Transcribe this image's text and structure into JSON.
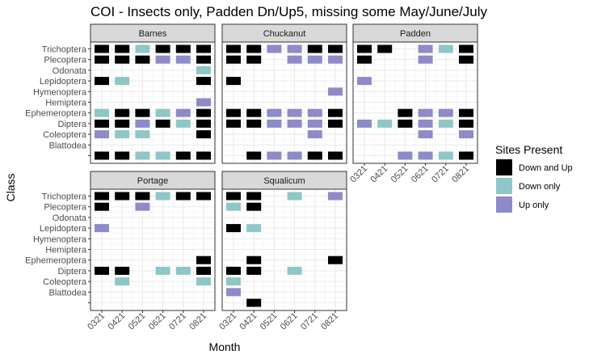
{
  "chart_data": {
    "type": "heatmap",
    "title": "COI - Insects only, Padden Dn/Up5, missing some May/June/July",
    "xlabel": "Month",
    "ylabel": "Class",
    "x_categories": [
      "0321",
      "0421",
      "0521",
      "0621",
      "0721",
      "0821"
    ],
    "y_categories": [
      "Trichoptera",
      "Plecoptera",
      "Odonata",
      "Lepidoptera",
      "Hymenoptera",
      "Hemiptera",
      "Ephemeroptera",
      "Diptera",
      "Coleoptera",
      "Blattodea",
      ""
    ],
    "legend": {
      "title": "Sites Present",
      "position": "right",
      "entries": [
        {
          "key": "both",
          "label": "Down and Up",
          "color": "#000000"
        },
        {
          "key": "down",
          "label": "Down only",
          "color": "#8FC6C6"
        },
        {
          "key": "up",
          "label": "Up only",
          "color": "#8E8BC8"
        }
      ]
    },
    "grid": true,
    "facets": [
      {
        "name": "Barnes",
        "cells": [
          [
            "Trichoptera",
            "0321",
            "both"
          ],
          [
            "Trichoptera",
            "0421",
            "both"
          ],
          [
            "Trichoptera",
            "0521",
            "down"
          ],
          [
            "Trichoptera",
            "0621",
            "both"
          ],
          [
            "Trichoptera",
            "0721",
            "both"
          ],
          [
            "Trichoptera",
            "0821",
            "both"
          ],
          [
            "Plecoptera",
            "0321",
            "both"
          ],
          [
            "Plecoptera",
            "0421",
            "both"
          ],
          [
            "Plecoptera",
            "0521",
            "both"
          ],
          [
            "Plecoptera",
            "0621",
            "up"
          ],
          [
            "Plecoptera",
            "0721",
            "up"
          ],
          [
            "Plecoptera",
            "0821",
            "both"
          ],
          [
            "Odonata",
            "0821",
            "down"
          ],
          [
            "Lepidoptera",
            "0321",
            "both"
          ],
          [
            "Lepidoptera",
            "0421",
            "down"
          ],
          [
            "Lepidoptera",
            "0821",
            "both"
          ],
          [
            "Hemiptera",
            "0821",
            "up"
          ],
          [
            "Ephemeroptera",
            "0321",
            "down"
          ],
          [
            "Ephemeroptera",
            "0421",
            "both"
          ],
          [
            "Ephemeroptera",
            "0521",
            "both"
          ],
          [
            "Ephemeroptera",
            "0621",
            "down"
          ],
          [
            "Ephemeroptera",
            "0721",
            "up"
          ],
          [
            "Ephemeroptera",
            "0821",
            "both"
          ],
          [
            "Diptera",
            "0321",
            "both"
          ],
          [
            "Diptera",
            "0421",
            "both"
          ],
          [
            "Diptera",
            "0521",
            "up"
          ],
          [
            "Diptera",
            "0621",
            "both"
          ],
          [
            "Diptera",
            "0721",
            "down"
          ],
          [
            "Diptera",
            "0821",
            "both"
          ],
          [
            "Coleoptera",
            "0321",
            "up"
          ],
          [
            "Coleoptera",
            "0421",
            "down"
          ],
          [
            "Coleoptera",
            "0521",
            "down"
          ],
          [
            "Coleoptera",
            "0821",
            "both"
          ],
          [
            "",
            "0321",
            "both"
          ],
          [
            "",
            "0421",
            "both"
          ],
          [
            "",
            "0521",
            "down"
          ],
          [
            "",
            "0621",
            "down"
          ],
          [
            "",
            "0721",
            "both"
          ],
          [
            "",
            "0821",
            "both"
          ]
        ]
      },
      {
        "name": "Chuckanut",
        "cells": [
          [
            "Trichoptera",
            "0321",
            "both"
          ],
          [
            "Trichoptera",
            "0421",
            "both"
          ],
          [
            "Trichoptera",
            "0521",
            "up"
          ],
          [
            "Trichoptera",
            "0621",
            "up"
          ],
          [
            "Trichoptera",
            "0721",
            "both"
          ],
          [
            "Trichoptera",
            "0821",
            "both"
          ],
          [
            "Plecoptera",
            "0321",
            "both"
          ],
          [
            "Plecoptera",
            "0421",
            "both"
          ],
          [
            "Plecoptera",
            "0621",
            "up"
          ],
          [
            "Plecoptera",
            "0721",
            "up"
          ],
          [
            "Plecoptera",
            "0821",
            "up"
          ],
          [
            "Lepidoptera",
            "0321",
            "both"
          ],
          [
            "Hymenoptera",
            "0821",
            "up"
          ],
          [
            "Ephemeroptera",
            "0321",
            "both"
          ],
          [
            "Ephemeroptera",
            "0421",
            "both"
          ],
          [
            "Ephemeroptera",
            "0521",
            "up"
          ],
          [
            "Ephemeroptera",
            "0621",
            "up"
          ],
          [
            "Ephemeroptera",
            "0721",
            "up"
          ],
          [
            "Ephemeroptera",
            "0821",
            "both"
          ],
          [
            "Diptera",
            "0321",
            "both"
          ],
          [
            "Diptera",
            "0421",
            "both"
          ],
          [
            "Diptera",
            "0521",
            "up"
          ],
          [
            "Diptera",
            "0621",
            "up"
          ],
          [
            "Diptera",
            "0721",
            "up"
          ],
          [
            "Diptera",
            "0821",
            "both"
          ],
          [
            "Coleoptera",
            "0721",
            "up"
          ],
          [
            "",
            "0421",
            "both"
          ],
          [
            "",
            "0521",
            "up"
          ],
          [
            "",
            "0621",
            "up"
          ],
          [
            "",
            "0721",
            "both"
          ],
          [
            "",
            "0821",
            "both"
          ]
        ]
      },
      {
        "name": "Padden",
        "cells": [
          [
            "Trichoptera",
            "0321",
            "both"
          ],
          [
            "Trichoptera",
            "0421",
            "both"
          ],
          [
            "Trichoptera",
            "0621",
            "up"
          ],
          [
            "Trichoptera",
            "0721",
            "down"
          ],
          [
            "Trichoptera",
            "0821",
            "both"
          ],
          [
            "Plecoptera",
            "0321",
            "both"
          ],
          [
            "Plecoptera",
            "0621",
            "up"
          ],
          [
            "Plecoptera",
            "0821",
            "both"
          ],
          [
            "Lepidoptera",
            "0321",
            "up"
          ],
          [
            "Ephemeroptera",
            "0521",
            "both"
          ],
          [
            "Ephemeroptera",
            "0621",
            "up"
          ],
          [
            "Ephemeroptera",
            "0721",
            "up"
          ],
          [
            "Ephemeroptera",
            "0821",
            "both"
          ],
          [
            "Diptera",
            "0321",
            "up"
          ],
          [
            "Diptera",
            "0421",
            "down"
          ],
          [
            "Diptera",
            "0521",
            "both"
          ],
          [
            "Diptera",
            "0621",
            "up"
          ],
          [
            "Diptera",
            "0721",
            "down"
          ],
          [
            "Diptera",
            "0821",
            "both"
          ],
          [
            "Coleoptera",
            "0621",
            "up"
          ],
          [
            "Coleoptera",
            "0821",
            "up"
          ],
          [
            "",
            "0521",
            "up"
          ],
          [
            "",
            "0621",
            "up"
          ],
          [
            "",
            "0721",
            "down"
          ],
          [
            "",
            "0821",
            "both"
          ]
        ]
      },
      {
        "name": "Portage",
        "cells": [
          [
            "Trichoptera",
            "0321",
            "both"
          ],
          [
            "Trichoptera",
            "0421",
            "both"
          ],
          [
            "Trichoptera",
            "0521",
            "both"
          ],
          [
            "Trichoptera",
            "0621",
            "down"
          ],
          [
            "Trichoptera",
            "0721",
            "both"
          ],
          [
            "Trichoptera",
            "0821",
            "both"
          ],
          [
            "Plecoptera",
            "0321",
            "both"
          ],
          [
            "Plecoptera",
            "0521",
            "up"
          ],
          [
            "Lepidoptera",
            "0321",
            "up"
          ],
          [
            "Ephemeroptera",
            "0821",
            "both"
          ],
          [
            "Diptera",
            "0321",
            "both"
          ],
          [
            "Diptera",
            "0421",
            "both"
          ],
          [
            "Diptera",
            "0621",
            "down"
          ],
          [
            "Diptera",
            "0721",
            "down"
          ],
          [
            "Diptera",
            "0821",
            "both"
          ],
          [
            "Coleoptera",
            "0421",
            "down"
          ],
          [
            "Coleoptera",
            "0821",
            "down"
          ]
        ]
      },
      {
        "name": "Squalicum",
        "cells": [
          [
            "Trichoptera",
            "0321",
            "both"
          ],
          [
            "Trichoptera",
            "0421",
            "both"
          ],
          [
            "Trichoptera",
            "0621",
            "down"
          ],
          [
            "Trichoptera",
            "0821",
            "up"
          ],
          [
            "Plecoptera",
            "0321",
            "down"
          ],
          [
            "Plecoptera",
            "0421",
            "both"
          ],
          [
            "Lepidoptera",
            "0321",
            "both"
          ],
          [
            "Lepidoptera",
            "0421",
            "down"
          ],
          [
            "Ephemeroptera",
            "0421",
            "both"
          ],
          [
            "Ephemeroptera",
            "0821",
            "both"
          ],
          [
            "Diptera",
            "0321",
            "both"
          ],
          [
            "Diptera",
            "0421",
            "both"
          ],
          [
            "Diptera",
            "0621",
            "down"
          ],
          [
            "Coleoptera",
            "0321",
            "down"
          ],
          [
            "Blattodea",
            "0321",
            "up"
          ],
          [
            "",
            "0421",
            "both"
          ]
        ]
      }
    ]
  }
}
